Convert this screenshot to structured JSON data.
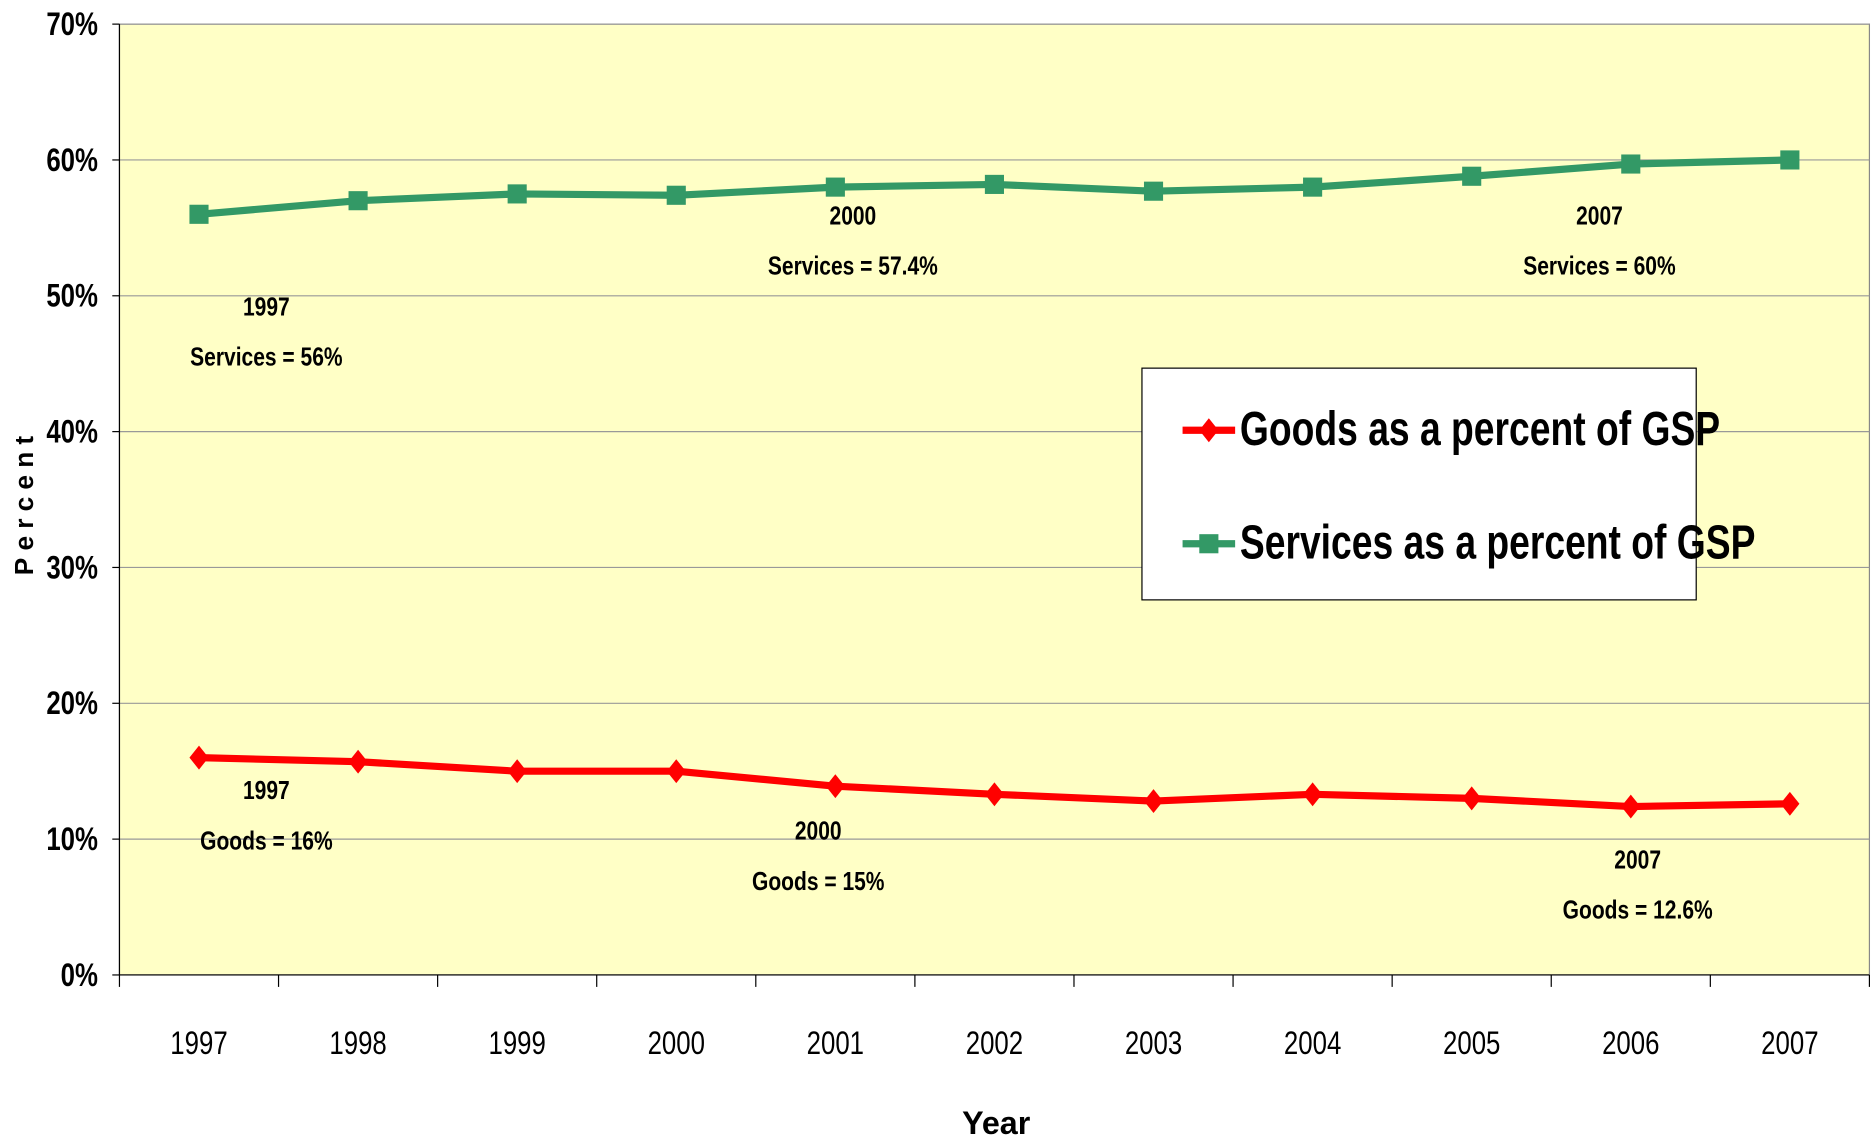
{
  "chart_data": {
    "type": "line",
    "y_label": "Percent",
    "x_label": "Year",
    "categories": [
      "1997",
      "1998",
      "1999",
      "2000",
      "2001",
      "2002",
      "2003",
      "2004",
      "2005",
      "2006",
      "2007"
    ],
    "series": [
      {
        "name": "Goods as a percent of GSP",
        "color": "#ff0000",
        "marker": "diamond",
        "values": [
          16,
          15.7,
          15.0,
          15,
          13.9,
          13.3,
          12.8,
          13.3,
          13.0,
          12.4,
          12.6
        ]
      },
      {
        "name": "Services as a percent of GSP",
        "color": "#339966",
        "marker": "square",
        "values": [
          56,
          57.0,
          57.5,
          57.4,
          58.0,
          58.2,
          57.7,
          58.0,
          58.8,
          59.7,
          60
        ]
      }
    ],
    "ylim": [
      0,
      70
    ],
    "yticks": [
      {
        "value": 0,
        "label": "0%"
      },
      {
        "value": 10,
        "label": "10%"
      },
      {
        "value": 20,
        "label": "20%"
      },
      {
        "value": 30,
        "label": "30%"
      },
      {
        "value": 40,
        "label": "40%"
      },
      {
        "value": 50,
        "label": "50%"
      },
      {
        "value": 60,
        "label": "60%"
      },
      {
        "value": 70,
        "label": "70%"
      }
    ],
    "grid": true,
    "plot_background": "#ffffc6",
    "annotations": [
      {
        "lines": [
          "1997",
          "Services = 56%"
        ]
      },
      {
        "lines": [
          "2000",
          "Services = 57.4%"
        ]
      },
      {
        "lines": [
          "2007",
          "Services = 60%"
        ]
      },
      {
        "lines": [
          "1997",
          "Goods = 16%"
        ]
      },
      {
        "lines": [
          "2000",
          "Goods = 15%"
        ]
      },
      {
        "lines": [
          "2007",
          "Goods = 12.6%"
        ]
      }
    ]
  }
}
